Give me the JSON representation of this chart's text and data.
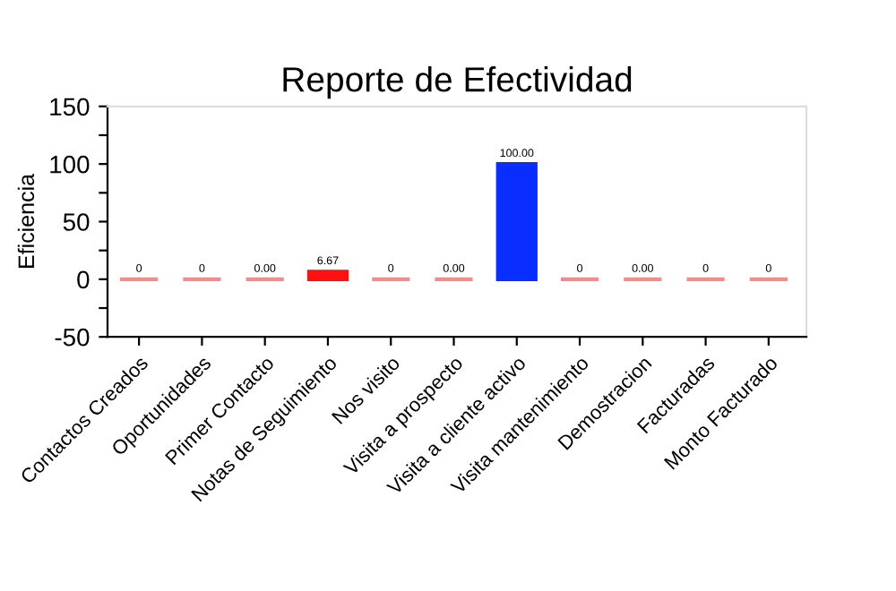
{
  "chart_data": {
    "type": "bar",
    "title": "Reporte de Efectividad",
    "ylabel": "Eficiencia",
    "categories": [
      "Contactos Creados",
      "Oportunidades",
      "Primer Contacto",
      "Notas de Seguimiento",
      "Nos visito",
      "Visita a prospecto",
      "Visita a cliente activo",
      "Visita mantenimiento",
      "Demostracion",
      "Facturadas",
      "Monto Facturado"
    ],
    "values": [
      0,
      0,
      0,
      6.67,
      0,
      0,
      100,
      0,
      0,
      0,
      0
    ],
    "value_labels": [
      "0",
      "0",
      "0.00",
      "6.67",
      "0",
      "0.00",
      "100.00",
      "0",
      "0.00",
      "0",
      "0"
    ],
    "colors": [
      "#f28b8b",
      "#f28b8b",
      "#f28b8b",
      "#ff1111",
      "#f28b8b",
      "#f28b8b",
      "#0a2eff",
      "#f28b8b",
      "#f28b8b",
      "#f28b8b",
      "#f28b8b"
    ],
    "ylim": [
      -50,
      150
    ],
    "yticks": [
      -50,
      {
        "value": -25,
        "label": null
      },
      0,
      {
        "value": 25,
        "label": null
      },
      50,
      {
        "value": 75,
        "label": null
      },
      100,
      {
        "value": 125,
        "label": null
      },
      150
    ],
    "grid": false,
    "legend": false
  }
}
